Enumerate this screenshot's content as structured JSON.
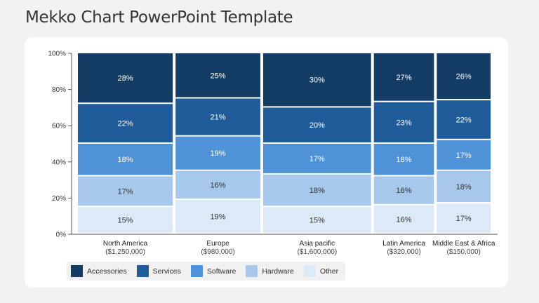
{
  "page": {
    "title": "Mekko Chart PowerPoint Template"
  },
  "chart_data": {
    "type": "mekko",
    "title": "",
    "xlabel": "",
    "ylabel": "",
    "ylim": [
      0,
      100
    ],
    "y_ticks": [
      "0%",
      "20%",
      "40%",
      "60%",
      "80%",
      "100%"
    ],
    "categories": [
      "North America",
      "Europe",
      "Asia pacific",
      "Latin America",
      "Middle East & Africa"
    ],
    "category_values": [
      "($1,250,000)",
      "($980,000)",
      "($1,600,000)",
      "($320,000)",
      "($150,000)"
    ],
    "series": [
      {
        "name": "Other",
        "color": "#dce9f6",
        "values": [
          15,
          19,
          15,
          16,
          17
        ]
      },
      {
        "name": "Hardware",
        "color": "#a7c8ea",
        "values": [
          17,
          16,
          18,
          16,
          18
        ]
      },
      {
        "name": "Software",
        "color": "#4f92d8",
        "values": [
          18,
          19,
          17,
          18,
          17
        ]
      },
      {
        "name": "Services",
        "color": "#1f5c99",
        "values": [
          22,
          21,
          20,
          23,
          22
        ]
      },
      {
        "name": "Accessories",
        "color": "#143d66",
        "values": [
          28,
          25,
          30,
          27,
          26
        ]
      }
    ],
    "legend": {
      "placement": "bottom-left",
      "items": [
        {
          "label": "Accessories",
          "color": "#143d66"
        },
        {
          "label": "Services",
          "color": "#1f5c99"
        },
        {
          "label": "Software",
          "color": "#4f92d8"
        },
        {
          "label": "Hardware",
          "color": "#a7c8ea"
        },
        {
          "label": "Other",
          "color": "#dce9f6"
        }
      ]
    }
  }
}
